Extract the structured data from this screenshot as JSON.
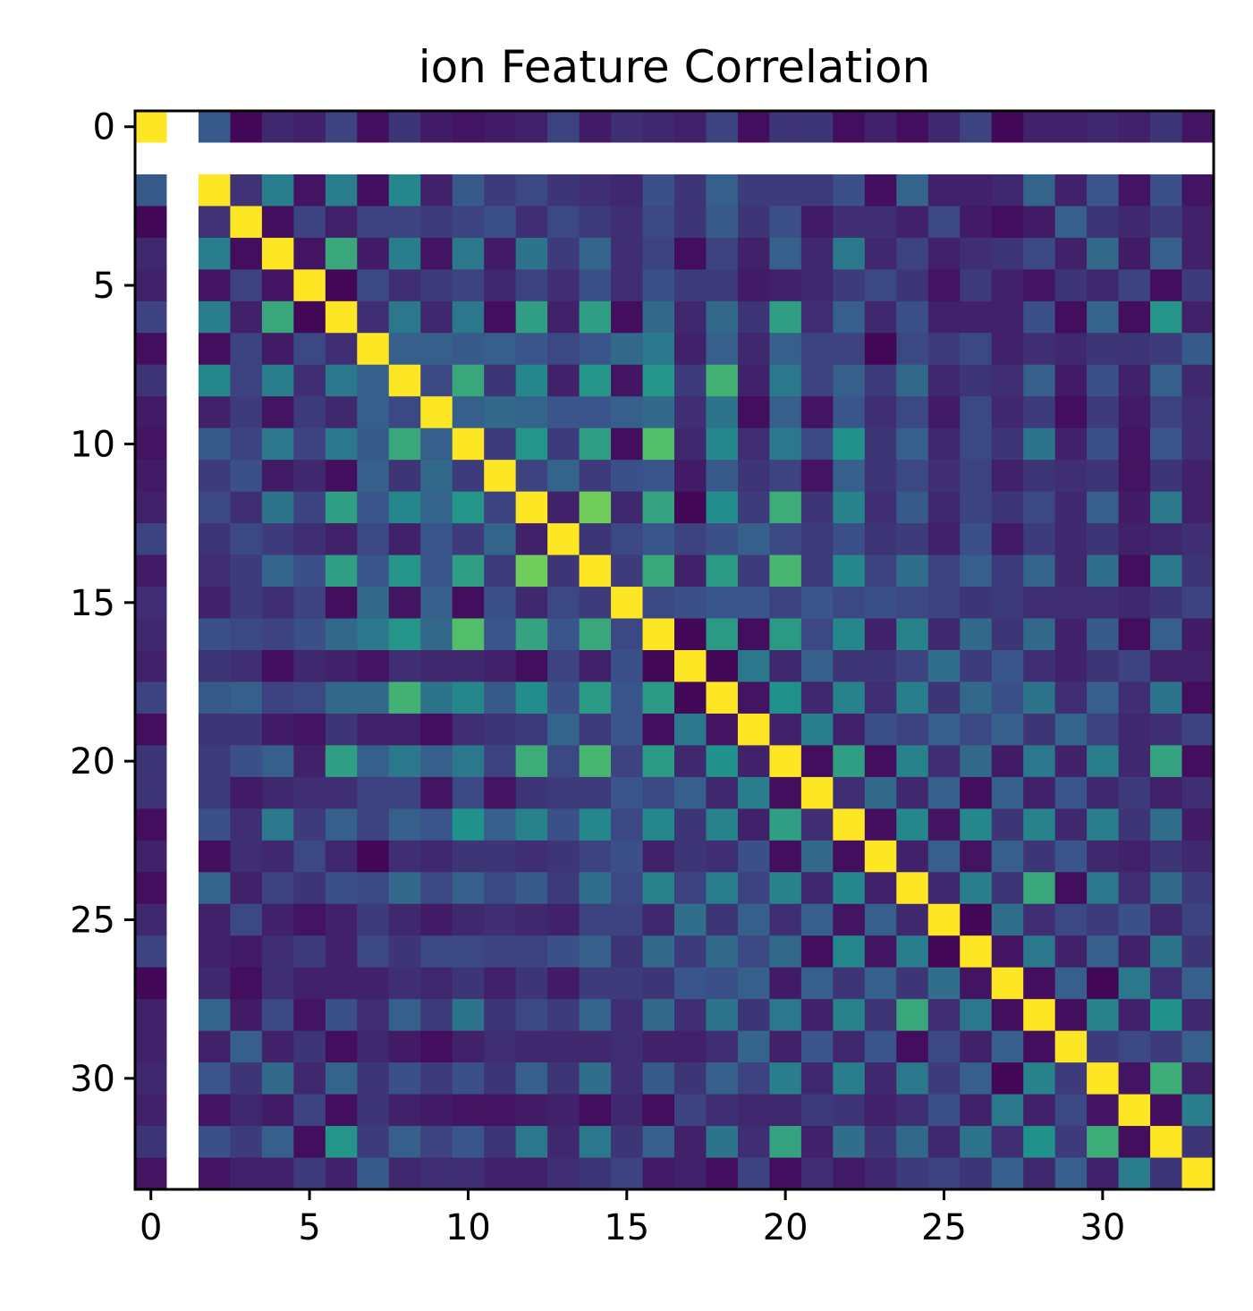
{
  "chart_data": {
    "type": "heatmap",
    "title": "ion Feature Correlation",
    "xlabel": "",
    "ylabel": "",
    "n": 34,
    "colormap": "viridis",
    "missing_index": 1,
    "x_ticks": [
      0,
      5,
      10,
      15,
      20,
      25,
      30
    ],
    "y_ticks": [
      0,
      5,
      10,
      15,
      20,
      25,
      30
    ],
    "x_tick_labels": [
      "0",
      "5",
      "10",
      "15",
      "20",
      "25",
      "30"
    ],
    "y_tick_labels": [
      "0",
      "5",
      "10",
      "15",
      "20",
      "25",
      "30"
    ],
    "grid": false,
    "colors": {
      "missing": "#ffffff",
      "axes": "#000000",
      "colormap_stops": [
        "#440154",
        "#3b528b",
        "#21918c",
        "#5ec962",
        "#fde725"
      ]
    },
    "values": [
      [
        1.0,
        null,
        0.28,
        0.02,
        0.12,
        0.1,
        0.2,
        0.04,
        0.16,
        0.08,
        0.06,
        0.08,
        0.1,
        0.2,
        0.08,
        0.14,
        0.12,
        0.1,
        0.2,
        0.04,
        0.16,
        0.16,
        0.04,
        0.1,
        0.04,
        0.12,
        0.2,
        0.02,
        0.1,
        0.1,
        0.12,
        0.1,
        0.16,
        0.06
      ],
      [
        null,
        null,
        null,
        null,
        null,
        null,
        null,
        null,
        null,
        null,
        null,
        null,
        null,
        null,
        null,
        null,
        null,
        null,
        null,
        null,
        null,
        null,
        null,
        null,
        null,
        null,
        null,
        null,
        null,
        null,
        null,
        null,
        null,
        null
      ],
      [
        0.28,
        null,
        1.0,
        0.15,
        0.42,
        0.06,
        0.42,
        0.04,
        0.46,
        0.1,
        0.28,
        0.18,
        0.22,
        0.16,
        0.14,
        0.12,
        0.24,
        0.16,
        0.3,
        0.18,
        0.18,
        0.18,
        0.24,
        0.04,
        0.32,
        0.1,
        0.1,
        0.12,
        0.32,
        0.1,
        0.26,
        0.06,
        0.24,
        0.06
      ],
      [
        0.02,
        null,
        0.15,
        1.0,
        0.04,
        0.2,
        0.1,
        0.2,
        0.2,
        0.18,
        0.2,
        0.24,
        0.14,
        0.22,
        0.18,
        0.14,
        0.22,
        0.16,
        0.28,
        0.16,
        0.24,
        0.08,
        0.14,
        0.14,
        0.1,
        0.22,
        0.08,
        0.04,
        0.08,
        0.3,
        0.16,
        0.12,
        0.18,
        0.1
      ],
      [
        0.12,
        null,
        0.42,
        0.04,
        1.0,
        0.06,
        0.6,
        0.08,
        0.42,
        0.06,
        0.4,
        0.08,
        0.38,
        0.18,
        0.32,
        0.14,
        0.2,
        0.04,
        0.2,
        0.1,
        0.3,
        0.12,
        0.4,
        0.12,
        0.2,
        0.1,
        0.14,
        0.16,
        0.22,
        0.1,
        0.34,
        0.08,
        0.3,
        0.1
      ],
      [
        0.1,
        null,
        0.06,
        0.2,
        0.06,
        1.0,
        0.02,
        0.22,
        0.14,
        0.18,
        0.2,
        0.12,
        0.2,
        0.14,
        0.24,
        0.14,
        0.24,
        0.18,
        0.18,
        0.08,
        0.1,
        0.12,
        0.18,
        0.22,
        0.16,
        0.06,
        0.18,
        0.1,
        0.06,
        0.16,
        0.12,
        0.2,
        0.04,
        0.18
      ],
      [
        0.2,
        null,
        0.42,
        0.1,
        0.6,
        0.02,
        1.0,
        0.14,
        0.4,
        0.12,
        0.4,
        0.04,
        0.56,
        0.1,
        0.56,
        0.04,
        0.34,
        0.12,
        0.34,
        0.16,
        0.56,
        0.14,
        0.3,
        0.12,
        0.24,
        0.1,
        0.1,
        0.1,
        0.24,
        0.04,
        0.32,
        0.04,
        0.52,
        0.1
      ],
      [
        0.04,
        null,
        0.04,
        0.2,
        0.08,
        0.22,
        0.14,
        1.0,
        0.3,
        0.3,
        0.28,
        0.3,
        0.26,
        0.22,
        0.26,
        0.34,
        0.4,
        0.1,
        0.3,
        0.12,
        0.3,
        0.2,
        0.2,
        0.02,
        0.22,
        0.18,
        0.22,
        0.1,
        0.14,
        0.12,
        0.16,
        0.16,
        0.18,
        0.28
      ],
      [
        0.16,
        null,
        0.46,
        0.2,
        0.42,
        0.14,
        0.4,
        0.3,
        1.0,
        0.22,
        0.6,
        0.16,
        0.46,
        0.1,
        0.52,
        0.06,
        0.52,
        0.18,
        0.64,
        0.1,
        0.4,
        0.2,
        0.3,
        0.18,
        0.34,
        0.12,
        0.16,
        0.14,
        0.3,
        0.08,
        0.24,
        0.1,
        0.3,
        0.12
      ],
      [
        0.08,
        null,
        0.1,
        0.18,
        0.06,
        0.18,
        0.12,
        0.3,
        0.22,
        1.0,
        0.3,
        0.34,
        0.32,
        0.26,
        0.26,
        0.3,
        0.34,
        0.14,
        0.38,
        0.04,
        0.3,
        0.06,
        0.26,
        0.14,
        0.22,
        0.08,
        0.22,
        0.12,
        0.18,
        0.04,
        0.18,
        0.08,
        0.2,
        0.14
      ],
      [
        0.06,
        null,
        0.28,
        0.2,
        0.4,
        0.2,
        0.4,
        0.28,
        0.6,
        0.3,
        1.0,
        0.18,
        0.52,
        0.18,
        0.56,
        0.04,
        0.7,
        0.12,
        0.46,
        0.14,
        0.4,
        0.22,
        0.5,
        0.16,
        0.3,
        0.12,
        0.22,
        0.16,
        0.38,
        0.1,
        0.24,
        0.06,
        0.26,
        0.14
      ],
      [
        0.08,
        null,
        0.18,
        0.24,
        0.08,
        0.12,
        0.04,
        0.3,
        0.16,
        0.34,
        0.18,
        1.0,
        0.2,
        0.32,
        0.18,
        0.24,
        0.26,
        0.08,
        0.28,
        0.16,
        0.2,
        0.06,
        0.3,
        0.16,
        0.22,
        0.14,
        0.2,
        0.1,
        0.16,
        0.14,
        0.16,
        0.06,
        0.16,
        0.1
      ],
      [
        0.1,
        null,
        0.22,
        0.14,
        0.38,
        0.2,
        0.56,
        0.26,
        0.46,
        0.32,
        0.52,
        0.2,
        1.0,
        0.1,
        0.78,
        0.12,
        0.58,
        0.02,
        0.48,
        0.18,
        0.62,
        0.16,
        0.44,
        0.14,
        0.28,
        0.12,
        0.2,
        0.16,
        0.22,
        0.12,
        0.3,
        0.08,
        0.4,
        0.1
      ],
      [
        0.2,
        null,
        0.16,
        0.22,
        0.18,
        0.14,
        0.1,
        0.22,
        0.1,
        0.26,
        0.18,
        0.32,
        0.1,
        1.0,
        0.16,
        0.22,
        0.26,
        0.2,
        0.24,
        0.3,
        0.22,
        0.18,
        0.24,
        0.16,
        0.18,
        0.1,
        0.24,
        0.08,
        0.18,
        0.12,
        0.16,
        0.1,
        0.12,
        0.14
      ],
      [
        0.08,
        null,
        0.14,
        0.18,
        0.32,
        0.24,
        0.56,
        0.26,
        0.52,
        0.26,
        0.56,
        0.18,
        0.78,
        0.16,
        1.0,
        0.18,
        0.6,
        0.1,
        0.54,
        0.18,
        0.66,
        0.18,
        0.46,
        0.2,
        0.36,
        0.2,
        0.3,
        0.18,
        0.32,
        0.12,
        0.36,
        0.04,
        0.4,
        0.16
      ],
      [
        0.14,
        null,
        0.1,
        0.18,
        0.14,
        0.2,
        0.04,
        0.34,
        0.06,
        0.3,
        0.04,
        0.24,
        0.12,
        0.22,
        0.18,
        1.0,
        0.22,
        0.24,
        0.26,
        0.26,
        0.2,
        0.26,
        0.22,
        0.24,
        0.22,
        0.2,
        0.16,
        0.18,
        0.14,
        0.14,
        0.14,
        0.12,
        0.16,
        0.2
      ],
      [
        0.12,
        null,
        0.24,
        0.22,
        0.2,
        0.24,
        0.34,
        0.4,
        0.52,
        0.34,
        0.7,
        0.26,
        0.58,
        0.26,
        0.6,
        0.22,
        1.0,
        0.02,
        0.54,
        0.04,
        0.54,
        0.22,
        0.46,
        0.1,
        0.44,
        0.12,
        0.34,
        0.16,
        0.34,
        0.1,
        0.28,
        0.04,
        0.3,
        0.08
      ],
      [
        0.1,
        null,
        0.16,
        0.14,
        0.04,
        0.12,
        0.1,
        0.06,
        0.14,
        0.12,
        0.12,
        0.1,
        0.04,
        0.2,
        0.1,
        0.24,
        0.02,
        1.0,
        0.02,
        0.4,
        0.12,
        0.3,
        0.16,
        0.16,
        0.2,
        0.36,
        0.18,
        0.26,
        0.14,
        0.1,
        0.16,
        0.2,
        0.1,
        0.1
      ],
      [
        0.2,
        null,
        0.28,
        0.3,
        0.2,
        0.22,
        0.34,
        0.34,
        0.64,
        0.38,
        0.46,
        0.28,
        0.48,
        0.24,
        0.54,
        0.26,
        0.54,
        0.02,
        1.0,
        0.06,
        0.5,
        0.12,
        0.44,
        0.14,
        0.42,
        0.16,
        0.34,
        0.24,
        0.38,
        0.14,
        0.3,
        0.14,
        0.38,
        0.04
      ],
      [
        0.04,
        null,
        0.16,
        0.16,
        0.08,
        0.06,
        0.16,
        0.1,
        0.1,
        0.04,
        0.14,
        0.16,
        0.18,
        0.32,
        0.18,
        0.26,
        0.04,
        0.4,
        0.06,
        1.0,
        0.1,
        0.42,
        0.1,
        0.24,
        0.2,
        0.3,
        0.22,
        0.3,
        0.16,
        0.32,
        0.2,
        0.12,
        0.14,
        0.2
      ],
      [
        0.16,
        null,
        0.18,
        0.24,
        0.3,
        0.1,
        0.56,
        0.3,
        0.4,
        0.3,
        0.4,
        0.2,
        0.62,
        0.22,
        0.66,
        0.2,
        0.54,
        0.12,
        0.5,
        0.1,
        1.0,
        0.04,
        0.56,
        0.04,
        0.44,
        0.14,
        0.34,
        0.08,
        0.4,
        0.1,
        0.42,
        0.12,
        0.58,
        0.04
      ],
      [
        0.16,
        null,
        0.18,
        0.08,
        0.12,
        0.14,
        0.14,
        0.2,
        0.2,
        0.06,
        0.22,
        0.06,
        0.16,
        0.18,
        0.18,
        0.26,
        0.22,
        0.3,
        0.12,
        0.42,
        0.04,
        1.0,
        0.14,
        0.34,
        0.12,
        0.3,
        0.04,
        0.3,
        0.1,
        0.26,
        0.12,
        0.18,
        0.1,
        0.14
      ],
      [
        0.04,
        null,
        0.24,
        0.14,
        0.4,
        0.18,
        0.3,
        0.2,
        0.3,
        0.26,
        0.5,
        0.3,
        0.44,
        0.24,
        0.46,
        0.22,
        0.46,
        0.16,
        0.44,
        0.1,
        0.56,
        0.14,
        1.0,
        0.04,
        0.46,
        0.06,
        0.46,
        0.16,
        0.44,
        0.12,
        0.42,
        0.16,
        0.36,
        0.08
      ],
      [
        0.1,
        null,
        0.04,
        0.14,
        0.12,
        0.22,
        0.12,
        0.02,
        0.14,
        0.12,
        0.16,
        0.16,
        0.14,
        0.16,
        0.2,
        0.24,
        0.1,
        0.16,
        0.14,
        0.24,
        0.04,
        0.34,
        0.04,
        1.0,
        0.1,
        0.3,
        0.06,
        0.3,
        0.16,
        0.26,
        0.12,
        0.1,
        0.16,
        0.12
      ],
      [
        0.04,
        null,
        0.32,
        0.1,
        0.2,
        0.16,
        0.24,
        0.22,
        0.34,
        0.22,
        0.3,
        0.22,
        0.28,
        0.18,
        0.36,
        0.22,
        0.44,
        0.2,
        0.42,
        0.2,
        0.44,
        0.12,
        0.46,
        0.1,
        1.0,
        0.12,
        0.42,
        0.16,
        0.6,
        0.04,
        0.4,
        0.14,
        0.34,
        0.18
      ],
      [
        0.12,
        null,
        0.1,
        0.22,
        0.1,
        0.06,
        0.1,
        0.18,
        0.12,
        0.08,
        0.12,
        0.14,
        0.12,
        0.1,
        0.2,
        0.2,
        0.12,
        0.36,
        0.16,
        0.3,
        0.14,
        0.3,
        0.06,
        0.3,
        0.12,
        1.0,
        0.02,
        0.36,
        0.14,
        0.22,
        0.18,
        0.24,
        0.12,
        0.2
      ],
      [
        0.2,
        null,
        0.1,
        0.08,
        0.14,
        0.18,
        0.1,
        0.22,
        0.16,
        0.22,
        0.22,
        0.2,
        0.2,
        0.24,
        0.3,
        0.16,
        0.34,
        0.18,
        0.34,
        0.22,
        0.34,
        0.04,
        0.46,
        0.06,
        0.42,
        0.02,
        1.0,
        0.06,
        0.4,
        0.1,
        0.3,
        0.1,
        0.38,
        0.16
      ],
      [
        0.02,
        null,
        0.12,
        0.04,
        0.14,
        0.1,
        0.1,
        0.1,
        0.14,
        0.12,
        0.16,
        0.1,
        0.16,
        0.08,
        0.18,
        0.18,
        0.16,
        0.26,
        0.24,
        0.3,
        0.08,
        0.3,
        0.16,
        0.3,
        0.16,
        0.36,
        0.06,
        1.0,
        0.04,
        0.3,
        0.02,
        0.4,
        0.14,
        0.3
      ],
      [
        0.1,
        null,
        0.32,
        0.08,
        0.22,
        0.06,
        0.24,
        0.14,
        0.3,
        0.18,
        0.38,
        0.16,
        0.22,
        0.18,
        0.32,
        0.14,
        0.34,
        0.14,
        0.38,
        0.16,
        0.4,
        0.1,
        0.44,
        0.16,
        0.6,
        0.14,
        0.4,
        0.04,
        1.0,
        0.04,
        0.44,
        0.1,
        0.5,
        0.12
      ],
      [
        0.1,
        null,
        0.1,
        0.3,
        0.1,
        0.16,
        0.04,
        0.12,
        0.08,
        0.04,
        0.1,
        0.14,
        0.12,
        0.12,
        0.12,
        0.14,
        0.1,
        0.1,
        0.14,
        0.32,
        0.1,
        0.26,
        0.12,
        0.26,
        0.04,
        0.22,
        0.1,
        0.3,
        0.04,
        1.0,
        0.18,
        0.22,
        0.18,
        0.3
      ],
      [
        0.12,
        null,
        0.26,
        0.16,
        0.34,
        0.12,
        0.32,
        0.16,
        0.24,
        0.18,
        0.24,
        0.16,
        0.3,
        0.16,
        0.36,
        0.14,
        0.28,
        0.16,
        0.3,
        0.2,
        0.42,
        0.12,
        0.42,
        0.12,
        0.4,
        0.18,
        0.3,
        0.02,
        0.44,
        0.18,
        1.0,
        0.06,
        0.62,
        0.1
      ],
      [
        0.1,
        null,
        0.06,
        0.12,
        0.08,
        0.2,
        0.04,
        0.16,
        0.1,
        0.08,
        0.06,
        0.06,
        0.08,
        0.1,
        0.04,
        0.12,
        0.04,
        0.2,
        0.14,
        0.12,
        0.12,
        0.18,
        0.16,
        0.1,
        0.14,
        0.24,
        0.1,
        0.4,
        0.1,
        0.22,
        0.06,
        1.0,
        0.04,
        0.42
      ],
      [
        0.16,
        null,
        0.24,
        0.18,
        0.3,
        0.04,
        0.52,
        0.18,
        0.3,
        0.2,
        0.26,
        0.16,
        0.4,
        0.12,
        0.4,
        0.16,
        0.3,
        0.1,
        0.38,
        0.14,
        0.58,
        0.1,
        0.36,
        0.16,
        0.34,
        0.12,
        0.38,
        0.14,
        0.5,
        0.18,
        0.62,
        0.04,
        1.0,
        0.16
      ],
      [
        0.06,
        null,
        0.06,
        0.1,
        0.1,
        0.18,
        0.1,
        0.28,
        0.12,
        0.14,
        0.14,
        0.1,
        0.1,
        0.14,
        0.16,
        0.2,
        0.08,
        0.1,
        0.04,
        0.2,
        0.04,
        0.14,
        0.08,
        0.12,
        0.18,
        0.2,
        0.16,
        0.3,
        0.12,
        0.3,
        0.1,
        0.42,
        0.16,
        1.0
      ]
    ]
  }
}
